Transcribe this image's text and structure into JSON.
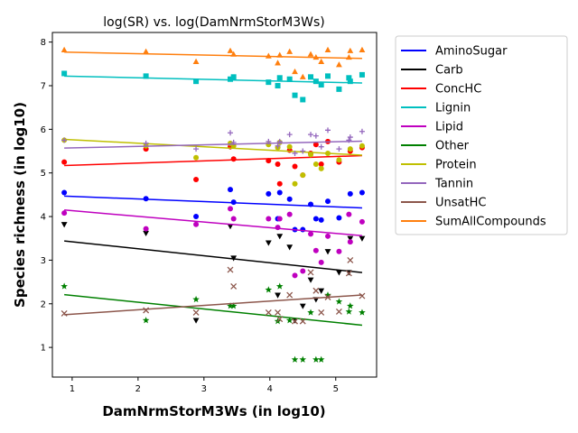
{
  "chart_data": {
    "type": "scatter",
    "title": "log(SR) vs. log(DamNrmStorM3Ws)",
    "xlabel": "DamNrmStorM3Ws (in log10)",
    "ylabel": "Species richness (in log10)",
    "xlim": [
      0.7,
      5.62
    ],
    "ylim": [
      0.32,
      8.22
    ],
    "xticks": [
      "1",
      "2",
      "3",
      "4",
      "5"
    ],
    "yticks": [
      "1",
      "2",
      "3",
      "4",
      "5",
      "6",
      "7",
      "8"
    ],
    "legend_position": "outside-right",
    "grid": false,
    "series": [
      {
        "name": "AminoSugar",
        "color": "#0000ff",
        "marker": "circle",
        "fit": [
          4.47,
          -0.06
        ],
        "points": [
          [
            0.88,
            4.55
          ],
          [
            2.12,
            4.41
          ],
          [
            2.88,
            4.0
          ],
          [
            3.4,
            4.62
          ],
          [
            3.45,
            4.33
          ],
          [
            3.98,
            4.52
          ],
          [
            4.12,
            3.95
          ],
          [
            4.15,
            4.55
          ],
          [
            4.3,
            4.4
          ],
          [
            4.38,
            3.7
          ],
          [
            4.5,
            3.7
          ],
          [
            4.62,
            4.28
          ],
          [
            4.7,
            3.95
          ],
          [
            4.78,
            3.92
          ],
          [
            4.88,
            4.35
          ],
          [
            5.05,
            3.97
          ],
          [
            5.22,
            4.52
          ],
          [
            5.4,
            4.55
          ]
        ]
      },
      {
        "name": "Carb",
        "color": "#000000",
        "marker": "triangle-down",
        "fit": [
          3.44,
          -0.16
        ],
        "points": [
          [
            0.88,
            3.82
          ],
          [
            2.12,
            3.62
          ],
          [
            2.88,
            1.62
          ],
          [
            3.4,
            3.78
          ],
          [
            3.45,
            3.05
          ],
          [
            3.98,
            3.4
          ],
          [
            4.12,
            2.2
          ],
          [
            4.15,
            3.55
          ],
          [
            4.3,
            3.3
          ],
          [
            4.38,
            1.62
          ],
          [
            4.5,
            1.95
          ],
          [
            4.62,
            2.55
          ],
          [
            4.7,
            2.1
          ],
          [
            4.78,
            2.3
          ],
          [
            4.88,
            3.2
          ],
          [
            5.05,
            2.72
          ],
          [
            5.22,
            3.5
          ],
          [
            5.4,
            3.5
          ],
          [
            5.2,
            2.72
          ]
        ]
      },
      {
        "name": "ConcHC",
        "color": "#ff0000",
        "marker": "circle",
        "fit": [
          5.17,
          0.05
        ],
        "points": [
          [
            0.88,
            5.25
          ],
          [
            2.12,
            5.55
          ],
          [
            2.88,
            4.85
          ],
          [
            3.4,
            5.6
          ],
          [
            3.45,
            5.32
          ],
          [
            3.98,
            5.28
          ],
          [
            4.12,
            5.2
          ],
          [
            4.15,
            4.75
          ],
          [
            4.3,
            5.52
          ],
          [
            4.38,
            5.15
          ],
          [
            4.5,
            4.95
          ],
          [
            4.62,
            5.45
          ],
          [
            4.7,
            5.65
          ],
          [
            4.78,
            5.2
          ],
          [
            4.88,
            5.72
          ],
          [
            5.05,
            5.25
          ],
          [
            5.22,
            5.5
          ],
          [
            5.4,
            5.58
          ]
        ]
      },
      {
        "name": "Lignin",
        "color": "#00bfbf",
        "marker": "square",
        "fit": [
          7.22,
          -0.035
        ],
        "points": [
          [
            0.88,
            7.28
          ],
          [
            2.12,
            7.22
          ],
          [
            2.88,
            7.1
          ],
          [
            3.4,
            7.15
          ],
          [
            3.45,
            7.2
          ],
          [
            3.98,
            7.08
          ],
          [
            4.12,
            7.0
          ],
          [
            4.15,
            7.18
          ],
          [
            4.3,
            7.15
          ],
          [
            4.38,
            6.78
          ],
          [
            4.5,
            6.68
          ],
          [
            4.62,
            7.2
          ],
          [
            4.7,
            7.1
          ],
          [
            4.78,
            7.02
          ],
          [
            4.88,
            7.22
          ],
          [
            5.05,
            6.92
          ],
          [
            5.22,
            7.1
          ],
          [
            5.4,
            7.25
          ],
          [
            5.2,
            7.18
          ]
        ]
      },
      {
        "name": "Lipid",
        "color": "#bf00bf",
        "marker": "circle",
        "fit": [
          4.15,
          -0.13
        ],
        "points": [
          [
            0.88,
            4.08
          ],
          [
            2.12,
            3.72
          ],
          [
            2.88,
            3.82
          ],
          [
            3.4,
            4.18
          ],
          [
            3.45,
            3.95
          ],
          [
            3.98,
            3.95
          ],
          [
            4.12,
            3.75
          ],
          [
            4.15,
            3.95
          ],
          [
            4.3,
            4.05
          ],
          [
            4.38,
            2.65
          ],
          [
            4.5,
            2.75
          ],
          [
            4.62,
            3.6
          ],
          [
            4.7,
            3.22
          ],
          [
            4.78,
            2.95
          ],
          [
            4.88,
            3.55
          ],
          [
            5.05,
            3.2
          ],
          [
            5.22,
            3.42
          ],
          [
            5.4,
            3.88
          ],
          [
            5.2,
            4.05
          ]
        ]
      },
      {
        "name": "Other",
        "color": "#008000",
        "marker": "star",
        "fit": [
          2.21,
          -0.155
        ],
        "points": [
          [
            0.88,
            2.4
          ],
          [
            2.12,
            1.62
          ],
          [
            2.88,
            2.1
          ],
          [
            3.4,
            1.95
          ],
          [
            3.45,
            1.95
          ],
          [
            3.98,
            2.32
          ],
          [
            4.12,
            1.6
          ],
          [
            4.15,
            2.4
          ],
          [
            4.3,
            1.62
          ],
          [
            4.38,
            0.72
          ],
          [
            4.5,
            0.72
          ],
          [
            4.62,
            1.8
          ],
          [
            4.7,
            0.72
          ],
          [
            4.78,
            0.72
          ],
          [
            4.88,
            2.2
          ],
          [
            5.05,
            2.05
          ],
          [
            5.22,
            1.95
          ],
          [
            5.4,
            1.8
          ],
          [
            5.2,
            1.82
          ]
        ]
      },
      {
        "name": "Protein",
        "color": "#bfbf00",
        "marker": "circle",
        "fit": [
          5.77,
          -0.08
        ],
        "points": [
          [
            0.88,
            5.75
          ],
          [
            2.12,
            5.62
          ],
          [
            2.88,
            5.35
          ],
          [
            3.4,
            5.68
          ],
          [
            3.45,
            5.62
          ],
          [
            3.98,
            5.65
          ],
          [
            4.12,
            5.58
          ],
          [
            4.15,
            5.7
          ],
          [
            4.3,
            5.6
          ],
          [
            4.38,
            4.75
          ],
          [
            4.5,
            4.95
          ],
          [
            4.62,
            5.42
          ],
          [
            4.7,
            5.2
          ],
          [
            4.78,
            5.1
          ],
          [
            4.88,
            5.45
          ],
          [
            5.05,
            5.3
          ],
          [
            5.22,
            5.55
          ],
          [
            5.4,
            5.62
          ]
        ]
      },
      {
        "name": "Tannin",
        "color": "#9467bd",
        "marker": "plus",
        "fit": [
          5.57,
          0.035
        ],
        "points": [
          [
            0.88,
            5.75
          ],
          [
            2.12,
            5.68
          ],
          [
            2.88,
            5.55
          ],
          [
            3.4,
            5.92
          ],
          [
            3.45,
            5.7
          ],
          [
            3.98,
            5.72
          ],
          [
            4.12,
            5.62
          ],
          [
            4.15,
            5.72
          ],
          [
            4.3,
            5.88
          ],
          [
            4.38,
            5.45
          ],
          [
            4.5,
            5.5
          ],
          [
            4.62,
            5.88
          ],
          [
            4.7,
            5.85
          ],
          [
            4.78,
            5.6
          ],
          [
            4.88,
            5.98
          ],
          [
            5.05,
            5.55
          ],
          [
            5.22,
            5.82
          ],
          [
            5.4,
            5.95
          ],
          [
            5.2,
            5.75
          ]
        ]
      },
      {
        "name": "UnsatHC",
        "color": "#8c564b",
        "marker": "x",
        "fit": [
          1.75,
          0.1
        ],
        "points": [
          [
            0.88,
            1.78
          ],
          [
            2.12,
            1.85
          ],
          [
            2.88,
            1.8
          ],
          [
            3.4,
            2.78
          ],
          [
            3.45,
            2.4
          ],
          [
            3.98,
            1.8
          ],
          [
            4.12,
            1.8
          ],
          [
            4.15,
            1.65
          ],
          [
            4.3,
            2.2
          ],
          [
            4.38,
            1.6
          ],
          [
            4.5,
            1.6
          ],
          [
            4.62,
            2.72
          ],
          [
            4.7,
            2.3
          ],
          [
            4.78,
            1.8
          ],
          [
            4.88,
            2.15
          ],
          [
            5.05,
            1.82
          ],
          [
            5.22,
            3.0
          ],
          [
            5.4,
            2.18
          ],
          [
            5.2,
            2.7
          ]
        ]
      },
      {
        "name": "SumAllCompounds",
        "color": "#ff7f0e",
        "marker": "triangle-up",
        "fit": [
          7.77,
          -0.032
        ],
        "points": [
          [
            0.88,
            7.82
          ],
          [
            2.12,
            7.78
          ],
          [
            2.88,
            7.55
          ],
          [
            3.4,
            7.8
          ],
          [
            3.45,
            7.72
          ],
          [
            3.98,
            7.68
          ],
          [
            4.12,
            7.52
          ],
          [
            4.15,
            7.7
          ],
          [
            4.3,
            7.78
          ],
          [
            4.38,
            7.32
          ],
          [
            4.5,
            7.2
          ],
          [
            4.62,
            7.72
          ],
          [
            4.7,
            7.65
          ],
          [
            4.78,
            7.55
          ],
          [
            4.88,
            7.82
          ],
          [
            5.05,
            7.48
          ],
          [
            5.22,
            7.8
          ],
          [
            5.4,
            7.82
          ],
          [
            5.2,
            7.65
          ]
        ]
      }
    ]
  }
}
